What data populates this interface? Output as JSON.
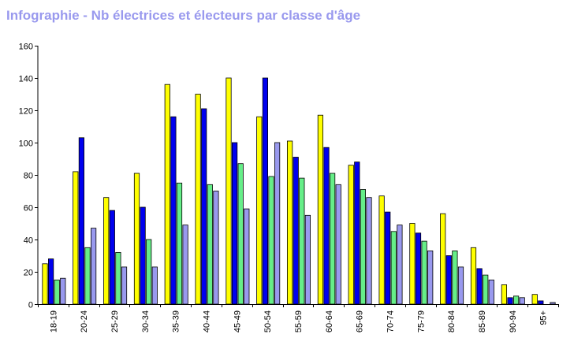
{
  "title": "Infographie - Nb électrices et électeurs par classe d'âge",
  "colors": {
    "title": "#9999ee",
    "series": [
      "#ffff00",
      "#0000ee",
      "#66ee88",
      "#9999ee"
    ]
  },
  "chart_data": {
    "type": "bar",
    "title": "Infographie - Nb électrices et électeurs par classe d'âge",
    "xlabel": "",
    "ylabel": "",
    "ylim": [
      0,
      160
    ],
    "yticks": [
      0,
      20,
      40,
      60,
      80,
      100,
      120,
      140,
      160
    ],
    "grid": false,
    "legend": "none",
    "categories": [
      "18-19",
      "20-24",
      "25-29",
      "30-34",
      "35-39",
      "40-44",
      "45-49",
      "50-54",
      "55-59",
      "60-64",
      "65-69",
      "70-74",
      "75-79",
      "80-84",
      "85-89",
      "90-94",
      "95+"
    ],
    "series": [
      {
        "values": [
          25,
          82,
          66,
          81,
          136,
          130,
          140,
          116,
          101,
          117,
          86,
          67,
          50,
          56,
          35,
          12,
          6
        ],
        "color": "#ffff00"
      },
      {
        "values": [
          28,
          103,
          58,
          60,
          116,
          121,
          100,
          140,
          91,
          97,
          88,
          57,
          44,
          30,
          22,
          4,
          2
        ],
        "color": "#0000ee"
      },
      {
        "values": [
          15,
          35,
          32,
          40,
          75,
          74,
          87,
          79,
          78,
          81,
          71,
          45,
          39,
          33,
          18,
          5,
          0
        ],
        "color": "#66ee88"
      },
      {
        "values": [
          16,
          47,
          23,
          23,
          49,
          70,
          59,
          100,
          55,
          74,
          66,
          49,
          33,
          23,
          15,
          4,
          1
        ],
        "color": "#9999ee"
      }
    ]
  }
}
